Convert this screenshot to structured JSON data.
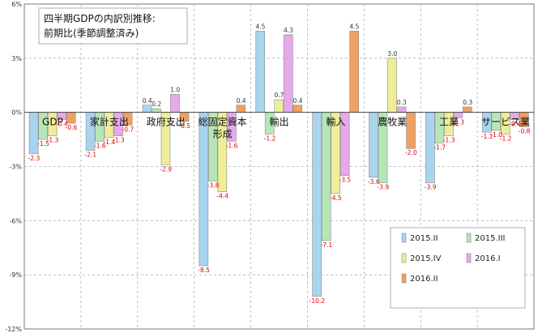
{
  "chart_data": {
    "type": "bar",
    "title_lines": [
      "四半期GDPの内訳別推移:",
      "前期比(季節調整済み)"
    ],
    "categories": [
      "GDP",
      "家計支出",
      "政府支出",
      "総固定資本形成",
      "輸出",
      "輸入",
      "農牧業",
      "工業",
      "サービス業"
    ],
    "category_label_lines": [
      [
        "GDP"
      ],
      [
        "家計支出"
      ],
      [
        "政府支出"
      ],
      [
        "総固定資本",
        "形成"
      ],
      [
        "輸出"
      ],
      [
        "輸入"
      ],
      [
        "農牧業"
      ],
      [
        "工業"
      ],
      [
        "サービス業"
      ]
    ],
    "y_ticks": [
      "6%",
      "3%",
      "0%",
      "-3%",
      "-6%",
      "-9%",
      "-12%"
    ],
    "ylim": [
      -12,
      6
    ],
    "legend_position": "bottom-right",
    "series": [
      {
        "name": "2015.II",
        "color": "#a8d4f0",
        "values": [
          -2.3,
          -2.1,
          0.4,
          -8.5,
          4.5,
          -10.2,
          -3.6,
          -3.9,
          -1.1
        ]
      },
      {
        "name": "2015.III",
        "color": "#b6e6b6",
        "values": [
          -1.5,
          -1.6,
          0.2,
          -3.8,
          -1.2,
          -7.1,
          -3.9,
          -1.7,
          -1.0
        ]
      },
      {
        "name": "2015.IV",
        "color": "#eeee99",
        "values": [
          -1.3,
          -1.4,
          -2.9,
          -4.4,
          0.7,
          -4.5,
          3.0,
          -1.3,
          -1.2
        ]
      },
      {
        "name": "2016.I",
        "color": "#e8a8ec",
        "values": [
          -0.4,
          -1.3,
          1.0,
          -1.6,
          4.3,
          -3.5,
          0.3,
          -0.3,
          -0.4
        ]
      },
      {
        "name": "2016.II",
        "color": "#f0a060",
        "values": [
          -0.6,
          -0.7,
          -0.5,
          0.4,
          0.4,
          4.5,
          -2.0,
          0.3,
          -0.8
        ]
      }
    ],
    "data_labels": [
      [
        "-2.3",
        "-1.5",
        "-1.3",
        "-0.4",
        "-0.6"
      ],
      [
        "-2.1",
        "-1.6",
        "-1.4",
        "-1.3",
        "-0.7"
      ],
      [
        "0.4",
        "0.2",
        "-2.9",
        "1.0",
        "-0.5"
      ],
      [
        "-8.5",
        "-3.8",
        "-4.4",
        "-1.6",
        "0.4"
      ],
      [
        "4.5",
        "-1.2",
        "0.7",
        "4.3",
        "0.4"
      ],
      [
        "-10.2",
        "-7.1",
        "-4.5",
        "-3.5",
        "4.5"
      ],
      [
        "-3.6",
        "-3.9",
        "3.0",
        "0.3",
        "-2.0"
      ],
      [
        "-3.9",
        "-1.7",
        "-1.3",
        "-0.3",
        "0.3"
      ],
      [
        "-1.1",
        "-1.0",
        "-1.2",
        "-0.4",
        "-0.8"
      ]
    ],
    "colors": {
      "negative_label": "#e00000",
      "positive_label": "#333333"
    }
  }
}
